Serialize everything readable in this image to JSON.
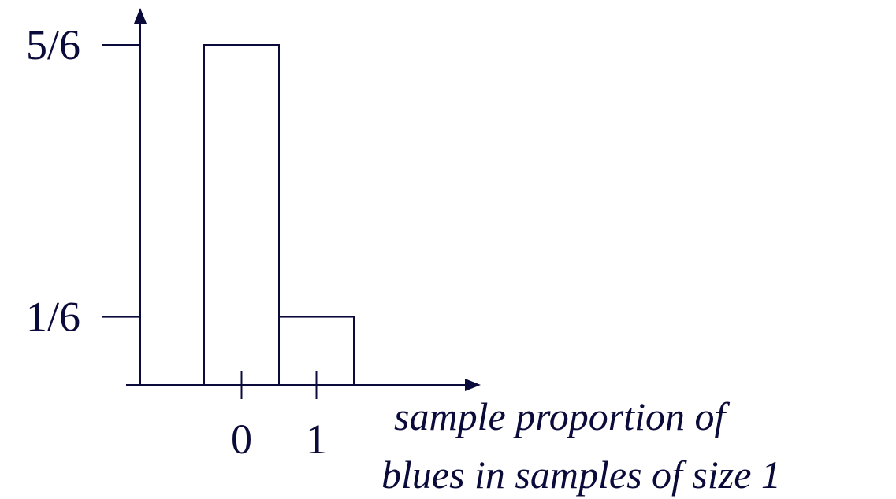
{
  "chart_data": {
    "type": "bar",
    "categories": [
      "0",
      "1"
    ],
    "values": [
      0.8333,
      0.1667
    ],
    "y_ticks": [
      {
        "value": 0.8333,
        "label": "5/6"
      },
      {
        "value": 0.1667,
        "label": "1/6"
      }
    ],
    "xlabel": [
      "sample proportion of",
      "blues in samples of size 1"
    ],
    "ylabel": "",
    "title": "",
    "ylim": [
      0,
      0.9
    ],
    "grid": false,
    "colors": {
      "ink": "#0b0b3b",
      "bar_fill": "#ffffff"
    }
  }
}
